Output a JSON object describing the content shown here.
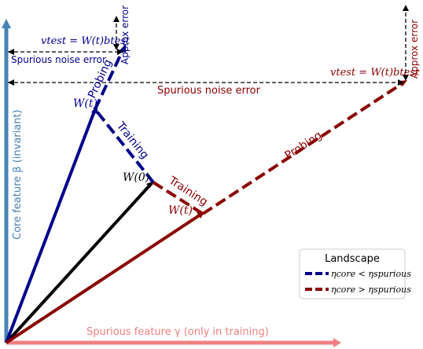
{
  "diagram": {
    "axes": {
      "x_label": "Spurious feature γ (only in training)",
      "y_label": "Core feature β (invariant)",
      "x_color": "#f08080",
      "y_color": "#4682b4"
    },
    "points": {
      "w0": "W(0)",
      "wt_blue": "W(t)",
      "wt_red": "W(t)"
    },
    "edges": {
      "training_blue": "Training",
      "training_red": "Training",
      "probing_blue": "Probing",
      "probing_red": "Probing"
    },
    "annotations": {
      "blue_vtest": "vtest = W(t)btest",
      "blue_approx": "Approx error",
      "blue_noise": "Spurious noise error",
      "red_vtest": "vtest = W(t)btest",
      "red_approx": "Approx error",
      "red_noise": "Spurious noise error"
    },
    "colors": {
      "blue": "#00008b",
      "red": "#8b0000",
      "black": "#000000"
    },
    "legend": {
      "title": "Landscape",
      "items": [
        {
          "label": "ηcore < ηspurious",
          "color": "#00008b"
        },
        {
          "label": "ηcore > ηspurious",
          "color": "#8b0000"
        }
      ]
    }
  }
}
